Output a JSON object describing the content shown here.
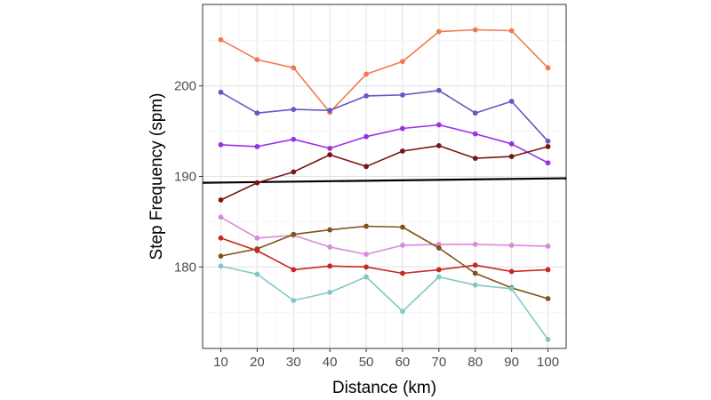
{
  "chart_data": {
    "type": "line",
    "xlabel": "Distance (km)",
    "ylabel": "Step Frequency (spm)",
    "x": [
      10,
      20,
      30,
      40,
      50,
      60,
      70,
      80,
      90,
      100
    ],
    "xlim": [
      5,
      105
    ],
    "ylim": [
      171,
      209
    ],
    "x_ticks": [
      10,
      20,
      30,
      40,
      50,
      60,
      70,
      80,
      90,
      100
    ],
    "y_ticks": [
      180,
      190,
      200
    ],
    "grid": true,
    "legend": "none",
    "series": [
      {
        "color": "#f07a4e",
        "values": [
          205.1,
          202.9,
          202.0,
          197.1,
          201.3,
          202.7,
          206.0,
          206.2,
          206.1,
          202.0
        ]
      },
      {
        "color": "#6657c4",
        "values": [
          199.3,
          197.0,
          197.4,
          197.3,
          198.9,
          199.0,
          199.5,
          197.0,
          198.3,
          193.9
        ]
      },
      {
        "color": "#9b2fe6",
        "values": [
          193.5,
          193.3,
          194.1,
          193.1,
          194.4,
          195.3,
          195.7,
          194.7,
          193.6,
          191.5
        ]
      },
      {
        "color": "#7a1414",
        "values": [
          187.4,
          189.3,
          190.5,
          192.4,
          191.1,
          192.8,
          193.4,
          192.0,
          192.2,
          193.3
        ]
      },
      {
        "color": "#d98ad9",
        "values": [
          185.5,
          183.2,
          183.5,
          182.2,
          181.4,
          182.4,
          182.5,
          182.5,
          182.4,
          182.3
        ]
      },
      {
        "color": "#7f5418",
        "values": [
          181.2,
          182.0,
          183.6,
          184.1,
          184.5,
          184.4,
          182.1,
          179.3,
          177.7,
          176.5
        ]
      },
      {
        "color": "#c8281f",
        "values": [
          183.2,
          181.8,
          179.7,
          180.1,
          180.0,
          179.3,
          179.7,
          180.2,
          179.5,
          179.7
        ]
      },
      {
        "color": "#7fc9c6",
        "values": [
          180.1,
          179.2,
          176.3,
          177.2,
          178.9,
          175.1,
          178.9,
          178.0,
          177.6,
          172.0
        ]
      }
    ],
    "reference_line": {
      "color": "#000000",
      "x": [
        5,
        105
      ],
      "y": [
        189.3,
        189.8
      ]
    }
  }
}
